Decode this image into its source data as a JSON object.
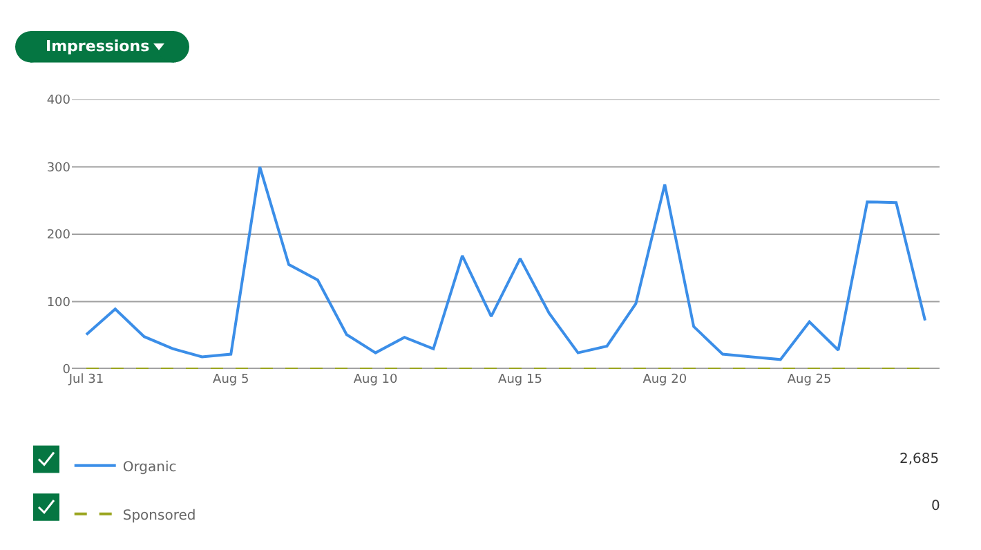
{
  "chart_data": {
    "type": "line",
    "title": "Impressions",
    "x": [
      "--07-31",
      "--08-01",
      "--08-02",
      "--08-03",
      "--08-04",
      "--08-05",
      "--08-06",
      "--08-07",
      "--08-08",
      "--08-09",
      "--08-10",
      "--08-11",
      "--08-12",
      "--08-13",
      "--08-14",
      "--08-15",
      "--08-16",
      "--08-17",
      "--08-18",
      "--08-19",
      "--08-20",
      "--08-21",
      "--08-22",
      "--08-23",
      "--08-24",
      "--08-25",
      "--08-26",
      "--08-27",
      "--08-28",
      "--08-29"
    ],
    "series": [
      {
        "name": "Organic",
        "color": "#3b8ee8",
        "line_style": "solid",
        "values": [
          51,
          89,
          48,
          30,
          18,
          22,
          300,
          155,
          132,
          51,
          24,
          47,
          30,
          168,
          78,
          164,
          83,
          24,
          34,
          97,
          274,
          63,
          22,
          18,
          14,
          70,
          28,
          248,
          247,
          72
        ]
      },
      {
        "name": "Sponsored",
        "color": "#9aa51f",
        "line_style": "dashed",
        "values": [
          0,
          0,
          0,
          0,
          0,
          0,
          0,
          0,
          0,
          0,
          0,
          0,
          0,
          0,
          0,
          0,
          0,
          0,
          0,
          0,
          0,
          0,
          0,
          0,
          0,
          0,
          0,
          0,
          0,
          0
        ]
      }
    ],
    "xlim": [
      "--07-30T12:00",
      "--08-29T12:00"
    ],
    "xticks": [
      {
        "value": "--07-31",
        "label": "Jul 31"
      },
      {
        "value": "--08-05",
        "label": "Aug 5"
      },
      {
        "value": "--08-10",
        "label": "Aug 10"
      },
      {
        "value": "--08-15",
        "label": "Aug 15"
      },
      {
        "value": "--08-20",
        "label": "Aug 20"
      },
      {
        "value": "--08-25",
        "label": "Aug 25"
      }
    ],
    "ylim": [
      0,
      400
    ],
    "yticks": [
      0,
      100,
      200,
      300,
      400
    ],
    "grid": "y",
    "legend": "bottom",
    "marker": "none",
    "annotations": [
      "2,685",
      "0"
    ]
  }
}
